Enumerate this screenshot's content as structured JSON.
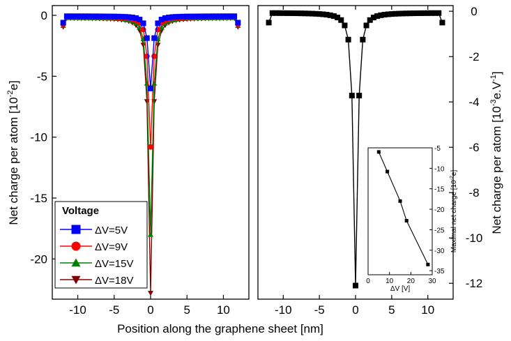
{
  "figure": {
    "xlabel_shared": "Position along the graphene sheet [nm]"
  },
  "chart_data": [
    {
      "type": "line",
      "panel": "left",
      "xlabel": "Position along the graphene sheet [nm]",
      "ylabel": "Net charge per atom [10⁻²e]",
      "ylabel_base": "Net charge per atom [10",
      "ylabel_sup": "-2",
      "ylabel_end": "e]",
      "xlim": [
        -13.5,
        13.5
      ],
      "ylim": [
        -23.3,
        0.8
      ],
      "xticks": [
        -10,
        -5,
        0,
        5,
        10
      ],
      "xtick_labels": [
        "-10",
        "-5",
        "0",
        "5",
        "10"
      ],
      "yticks": [
        0,
        -5,
        -10,
        -15,
        -20
      ],
      "ytick_labels": [
        "0",
        "-5",
        "-10",
        "-15",
        "-20"
      ],
      "legend": {
        "title": "Voltage",
        "placement": "bottom-left"
      },
      "series": [
        {
          "name": "ΔV=5V",
          "color": "#0000ff",
          "marker": "square",
          "peak": -6.0,
          "edge_end": -0.6,
          "baseline": -0.07
        },
        {
          "name": "ΔV=9V",
          "color": "#ff0000",
          "marker": "circle",
          "peak": -10.8,
          "edge_end": -0.75,
          "baseline": -0.12
        },
        {
          "name": "ΔV=15V",
          "color": "#008000",
          "marker": "triangle-up",
          "peak": -18.0,
          "edge_end": -0.85,
          "baseline": -0.18
        },
        {
          "name": "ΔV=18V",
          "color": "#800000",
          "marker": "triangle-down",
          "peak": -22.8,
          "edge_end": -0.95,
          "baseline": -0.22
        }
      ]
    },
    {
      "type": "line",
      "panel": "right",
      "xlabel": "Position along the graphene sheet [nm]",
      "ylabel": "Net charge per atom [10⁻³e.V⁻¹]",
      "ylabel_base": "Net charge per atom [10",
      "ylabel_sup": "-3",
      "ylabel_mid": "e.V",
      "ylabel_sup2": "-1",
      "ylabel_end": "]",
      "xlim": [
        -13.5,
        13.5
      ],
      "ylim": [
        -12.7,
        0.25
      ],
      "xticks": [
        -10,
        -5,
        0,
        5,
        10
      ],
      "xtick_labels": [
        "-10",
        "-5",
        "0",
        "5",
        "10"
      ],
      "yticks": [
        0,
        -2,
        -4,
        -6,
        -8,
        -10,
        -12
      ],
      "ytick_labels": [
        "0",
        "-2",
        "-4",
        "-6",
        "-8",
        "-10",
        "-12"
      ],
      "series": [
        {
          "name": "normalized",
          "color": "#000000",
          "marker": "square",
          "peak": -12.1,
          "edge_end": -0.5,
          "baseline": -0.07
        }
      ]
    },
    {
      "type": "scatter",
      "panel": "inset",
      "xlabel": "ΔV [V]",
      "ylabel": "Maximal net charge [10⁻²e]",
      "ylabel_base": "Maximal net charge [10",
      "ylabel_sup": "-2",
      "ylabel_end": "e]",
      "xlim": [
        0,
        30
      ],
      "ylim": [
        -36,
        -5
      ],
      "xticks": [
        0,
        10,
        20,
        30
      ],
      "xtick_labels": [
        "0",
        "10",
        "20",
        "30"
      ],
      "yticks": [
        -5,
        -10,
        -15,
        -20,
        -25,
        -30,
        -35
      ],
      "ytick_labels": [
        "-5",
        "-10",
        "-15",
        "-20",
        "-25",
        "-30",
        "-35"
      ],
      "x": [
        5,
        9,
        15,
        18,
        28
      ],
      "y": [
        -6.0,
        -10.8,
        -18.0,
        -22.8,
        -33.5
      ]
    }
  ]
}
